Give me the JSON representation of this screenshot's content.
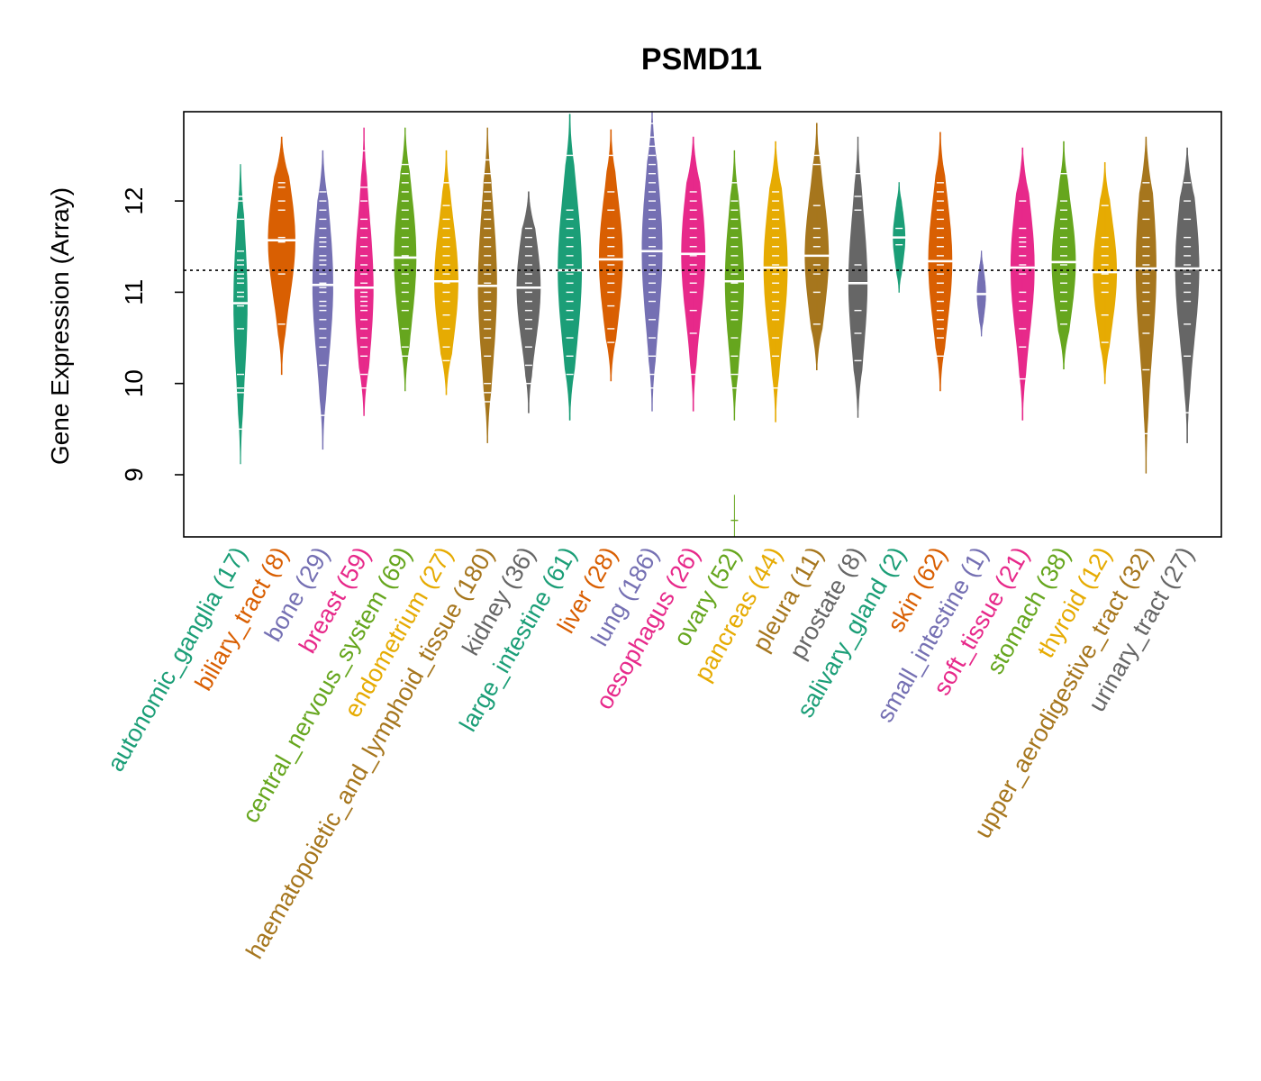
{
  "chart_data": {
    "type": "beanplot",
    "title": "PSMD11",
    "ylabel": "Gene Expression (Array)",
    "xlabel": "",
    "ylim": [
      8.33,
      12.98
    ],
    "yticks": [
      "9",
      "10",
      "11",
      "12"
    ],
    "reference_line": 11.24,
    "categories": [
      {
        "label": "autonomic_ganglia (17)",
        "color": "#1B9E77",
        "median": 10.88,
        "min": 9.12,
        "max": 12.4,
        "width": 0.4,
        "obs": [
          9.5,
          9.9,
          9.95,
          10.1,
          10.6,
          10.85,
          10.95,
          11.0,
          11.1,
          11.15,
          11.2,
          11.3,
          11.35,
          11.45,
          11.8,
          12.0,
          12.05
        ]
      },
      {
        "label": "biliary_tract (8)",
        "color": "#D95F02",
        "median": 11.57,
        "min": 10.1,
        "max": 12.7,
        "width": 0.8,
        "obs": [
          10.65,
          11.2,
          11.55,
          11.6,
          11.9,
          12.0,
          12.15,
          12.2
        ]
      },
      {
        "label": "bone (29)",
        "color": "#7570B3",
        "median": 11.08,
        "min": 9.28,
        "max": 12.55,
        "width": 0.6,
        "obs": [
          9.65,
          10.2,
          10.4,
          10.5,
          10.6,
          10.7,
          10.8,
          10.85,
          10.9,
          11.0,
          11.05,
          11.1,
          11.2,
          11.3,
          11.35,
          11.4,
          11.5,
          11.55,
          11.6,
          11.7,
          11.8,
          11.9,
          12.0,
          12.1
        ]
      },
      {
        "label": "breast (59)",
        "color": "#E7298A",
        "median": 11.05,
        "min": 9.65,
        "max": 12.8,
        "width": 0.55,
        "obs": [
          9.95,
          10.1,
          10.3,
          10.4,
          10.5,
          10.6,
          10.7,
          10.8,
          10.85,
          10.9,
          10.95,
          11.0,
          11.1,
          11.2,
          11.3,
          11.4,
          11.5,
          11.6,
          11.7,
          11.8,
          12.0,
          12.15,
          12.55
        ]
      },
      {
        "label": "central_nervous_system (69)",
        "color": "#66A61E",
        "median": 11.38,
        "min": 9.92,
        "max": 12.8,
        "width": 0.65,
        "obs": [
          10.3,
          10.4,
          10.6,
          10.8,
          10.9,
          11.0,
          11.1,
          11.2,
          11.3,
          11.4,
          11.5,
          11.6,
          11.7,
          11.8,
          11.9,
          12.0,
          12.1,
          12.2,
          12.3,
          12.4
        ]
      },
      {
        "label": "endometrium (27)",
        "color": "#E6AB02",
        "median": 11.12,
        "min": 9.88,
        "max": 12.55,
        "width": 0.7,
        "obs": [
          10.25,
          10.4,
          10.6,
          10.75,
          10.9,
          11.0,
          11.1,
          11.2,
          11.3,
          11.4,
          11.5,
          11.6,
          11.7,
          11.8,
          11.95,
          12.2
        ]
      },
      {
        "label": "haematopoietic_and_lymphoid_tissue (180)",
        "color": "#A6761D",
        "median": 11.07,
        "min": 9.35,
        "max": 12.8,
        "width": 0.55,
        "obs": [
          9.8,
          9.9,
          10.0,
          10.3,
          10.5,
          10.6,
          10.7,
          10.8,
          10.9,
          11.0,
          11.1,
          11.2,
          11.3,
          11.4,
          11.5,
          11.6,
          11.7,
          11.8,
          11.9,
          12.0,
          12.1,
          12.2,
          12.3,
          12.45
        ]
      },
      {
        "label": "kidney (36)",
        "color": "#666666",
        "median": 11.05,
        "min": 9.68,
        "max": 12.1,
        "width": 0.7,
        "obs": [
          10.0,
          10.2,
          10.4,
          10.6,
          10.7,
          10.8,
          10.9,
          11.0,
          11.1,
          11.2,
          11.3,
          11.4,
          11.5,
          11.6,
          11.7
        ]
      },
      {
        "label": "large_intestine (61)",
        "color": "#1B9E77",
        "median": 11.24,
        "min": 9.6,
        "max": 12.95,
        "width": 0.7,
        "obs": [
          10.1,
          10.3,
          10.5,
          10.7,
          10.8,
          10.9,
          11.0,
          11.1,
          11.2,
          11.3,
          11.4,
          11.5,
          11.6,
          11.7,
          11.8,
          11.9,
          12.5
        ]
      },
      {
        "label": "liver (28)",
        "color": "#D95F02",
        "median": 11.36,
        "min": 10.03,
        "max": 12.78,
        "width": 0.7,
        "obs": [
          10.45,
          10.6,
          10.85,
          11.0,
          11.1,
          11.2,
          11.3,
          11.4,
          11.5,
          11.6,
          11.7,
          11.9,
          12.1,
          12.5
        ]
      },
      {
        "label": "lung (186)",
        "color": "#7570B3",
        "median": 11.45,
        "min": 9.7,
        "max": 12.98,
        "width": 0.6,
        "obs": [
          9.95,
          10.1,
          10.3,
          10.5,
          10.7,
          10.9,
          11.0,
          11.1,
          11.2,
          11.3,
          11.4,
          11.5,
          11.6,
          11.7,
          11.8,
          11.9,
          12.0,
          12.1,
          12.2,
          12.3,
          12.4,
          12.5,
          12.6,
          12.7,
          12.85
        ]
      },
      {
        "label": "oesophagus (26)",
        "color": "#E7298A",
        "median": 11.42,
        "min": 9.7,
        "max": 12.7,
        "width": 0.7,
        "obs": [
          10.1,
          10.55,
          10.8,
          11.0,
          11.1,
          11.2,
          11.3,
          11.4,
          11.5,
          11.6,
          11.7,
          11.8,
          11.9,
          12.0,
          12.1
        ]
      },
      {
        "label": "ovary (52)",
        "color": "#66A61E",
        "median": 11.12,
        "min": 9.6,
        "max": 12.55,
        "width": 0.55,
        "obs": [
          9.95,
          10.1,
          10.3,
          10.5,
          10.7,
          10.8,
          10.9,
          11.0,
          11.1,
          11.2,
          11.3,
          11.4,
          11.5,
          11.6,
          11.7,
          11.8,
          11.9,
          12.0,
          12.2
        ]
      },
      {
        "label": "pancreas (44)",
        "color": "#E6AB02",
        "median": 11.27,
        "min": 9.58,
        "max": 12.65,
        "width": 0.7,
        "obs": [
          9.95,
          10.3,
          10.5,
          10.7,
          10.8,
          10.9,
          11.0,
          11.1,
          11.2,
          11.3,
          11.4,
          11.5,
          11.6,
          11.7,
          11.8,
          11.9,
          12.0,
          12.1
        ]
      },
      {
        "label": "pleura (11)",
        "color": "#A6761D",
        "median": 11.4,
        "min": 10.15,
        "max": 12.85,
        "width": 0.7,
        "obs": [
          10.65,
          11.0,
          11.2,
          11.3,
          11.4,
          11.5,
          11.6,
          11.7,
          11.95,
          12.4,
          12.5
        ]
      },
      {
        "label": "prostate (8)",
        "color": "#666666",
        "median": 11.1,
        "min": 9.63,
        "max": 12.7,
        "width": 0.55,
        "obs": [
          10.25,
          10.55,
          10.8,
          11.1,
          11.3,
          11.9,
          12.05,
          12.3
        ]
      },
      {
        "label": "salivary_gland (2)",
        "color": "#1B9E77",
        "median": 11.6,
        "min": 11.0,
        "max": 12.2,
        "width": 0.35,
        "obs": [
          11.52,
          11.7
        ]
      },
      {
        "label": "skin (62)",
        "color": "#D95F02",
        "median": 11.34,
        "min": 9.92,
        "max": 12.75,
        "width": 0.7,
        "obs": [
          10.3,
          10.5,
          10.6,
          10.7,
          10.8,
          10.9,
          11.0,
          11.1,
          11.2,
          11.3,
          11.4,
          11.5,
          11.6,
          11.7,
          11.8,
          11.9,
          12.0,
          12.1,
          12.2
        ]
      },
      {
        "label": "small_intestine (1)",
        "color": "#7570B3",
        "median": 10.98,
        "min": 10.52,
        "max": 11.45,
        "width": 0.25,
        "obs": [
          10.98
        ]
      },
      {
        "label": "soft_tissue (21)",
        "color": "#E7298A",
        "median": 11.27,
        "min": 9.6,
        "max": 12.58,
        "width": 0.7,
        "obs": [
          10.05,
          10.4,
          10.6,
          10.8,
          10.9,
          11.0,
          11.2,
          11.3,
          11.4,
          11.5,
          11.55,
          11.6,
          11.7,
          12.0
        ]
      },
      {
        "label": "stomach (38)",
        "color": "#66A61E",
        "median": 11.33,
        "min": 10.16,
        "max": 12.65,
        "width": 0.7,
        "obs": [
          10.65,
          10.8,
          10.9,
          11.0,
          11.1,
          11.2,
          11.3,
          11.4,
          11.5,
          11.6,
          11.7,
          11.8,
          11.9,
          12.0,
          12.3
        ]
      },
      {
        "label": "thyroid (12)",
        "color": "#E6AB02",
        "median": 11.22,
        "min": 10.0,
        "max": 12.42,
        "width": 0.7,
        "obs": [
          10.45,
          10.75,
          11.0,
          11.1,
          11.2,
          11.3,
          11.4,
          11.5,
          11.6,
          11.95
        ]
      },
      {
        "label": "upper_aerodigestive_tract (32)",
        "color": "#A6761D",
        "median": 11.26,
        "min": 9.02,
        "max": 12.7,
        "width": 0.6,
        "obs": [
          9.45,
          10.15,
          10.55,
          10.75,
          10.9,
          11.0,
          11.1,
          11.2,
          11.3,
          11.4,
          11.5,
          11.6,
          11.8,
          12.0,
          12.2
        ]
      },
      {
        "label": "urinary_tract (27)",
        "color": "#666666",
        "median": 11.26,
        "min": 9.35,
        "max": 12.58,
        "width": 0.7,
        "obs": [
          9.68,
          10.3,
          10.65,
          10.9,
          11.0,
          11.1,
          11.2,
          11.3,
          11.4,
          11.5,
          11.6,
          11.8,
          12.0,
          12.2
        ]
      }
    ],
    "outliers": [
      {
        "category": "ovary (52)",
        "value": 8.5,
        "min": 8.3,
        "max": 8.78
      }
    ]
  }
}
